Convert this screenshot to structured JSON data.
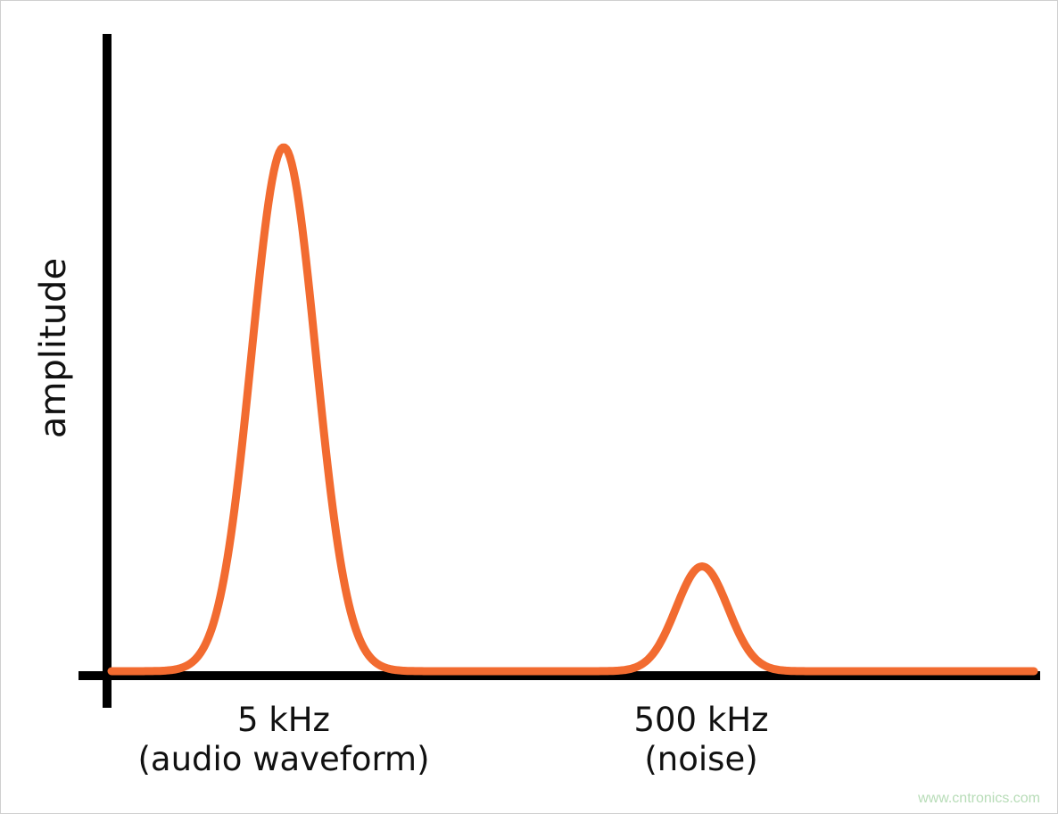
{
  "chart_data": {
    "type": "line",
    "title": "",
    "ylabel": "amplitude",
    "xlabel": "",
    "categories": [
      "5 kHz\n(audio waveform)",
      "500 kHz\n(noise)"
    ],
    "tick_labels": [
      {
        "line1": "5 kHz",
        "line2": "(audio waveform)"
      },
      {
        "line1": "500 kHz",
        "line2": "(noise)"
      }
    ],
    "series": [
      {
        "peaks": [
          {
            "at": "5 kHz",
            "relative_amplitude": 1.0
          },
          {
            "at": "500 kHz",
            "relative_amplitude": 0.2
          }
        ]
      }
    ],
    "grid": false,
    "line_color": "#f26b30",
    "axis_color": "#000000"
  },
  "watermark": "www.cntronics.com"
}
